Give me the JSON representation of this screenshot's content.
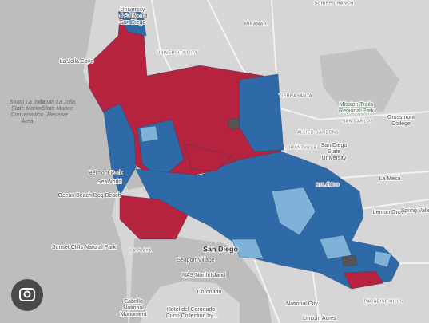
{
  "map": {
    "labels": [
      {
        "lines": [
          "University",
          "of California",
          "San Diego"
        ]
      },
      {
        "lines": [
          "La Jolla Cove"
        ]
      },
      {
        "lines": [
          "South La Jolla",
          "State Marine",
          "Conservation",
          "Area"
        ]
      },
      {
        "lines": [
          "South La Jolla",
          "State Marine",
          "Reserve"
        ]
      },
      {
        "lines": [
          "MIRAMAR"
        ]
      },
      {
        "lines": [
          "UNIVERSITY CITY"
        ]
      },
      {
        "lines": [
          "TIERRASANTA"
        ]
      },
      {
        "lines": [
          "Mission Trails",
          "Regional Park"
        ]
      },
      {
        "lines": [
          "Grossmont",
          "College"
        ]
      },
      {
        "lines": [
          "SAN CARLOS"
        ]
      },
      {
        "lines": [
          "ALLIED GARDENS"
        ]
      },
      {
        "lines": [
          "GRANTVILLE"
        ]
      },
      {
        "lines": [
          "San Diego",
          "State",
          "University"
        ]
      },
      {
        "lines": [
          "La Mesa"
        ]
      },
      {
        "lines": [
          "Belmont Park"
        ]
      },
      {
        "lines": [
          "SeaWorld"
        ]
      },
      {
        "lines": [
          "Ocean Beach Dog Beach"
        ]
      },
      {
        "lines": [
          "Lemon Grove"
        ]
      },
      {
        "lines": [
          "Spring Valley"
        ]
      },
      {
        "lines": [
          "Sunset Cliffs Natural Park"
        ]
      },
      {
        "lines": [
          "LA PLAYA"
        ]
      },
      {
        "lines": [
          "Seaport Village"
        ]
      },
      {
        "lines": [
          "San Diego"
        ]
      },
      {
        "lines": [
          "NAS North Island"
        ]
      },
      {
        "lines": [
          "Coronado"
        ]
      },
      {
        "lines": [
          "Cabrillo",
          "National",
          "Monument"
        ]
      },
      {
        "lines": [
          "Hotel del Coronado,",
          "Curio Collection by..."
        ]
      },
      {
        "lines": [
          "National City"
        ]
      },
      {
        "lines": [
          "Lincoln Acres"
        ]
      },
      {
        "lines": [
          "PARADISE HILLS"
        ]
      },
      {
        "lines": [
          "SCRIPPS RANCH"
        ]
      },
      {
        "lines": [
          "ROLANDO"
        ]
      }
    ]
  }
}
